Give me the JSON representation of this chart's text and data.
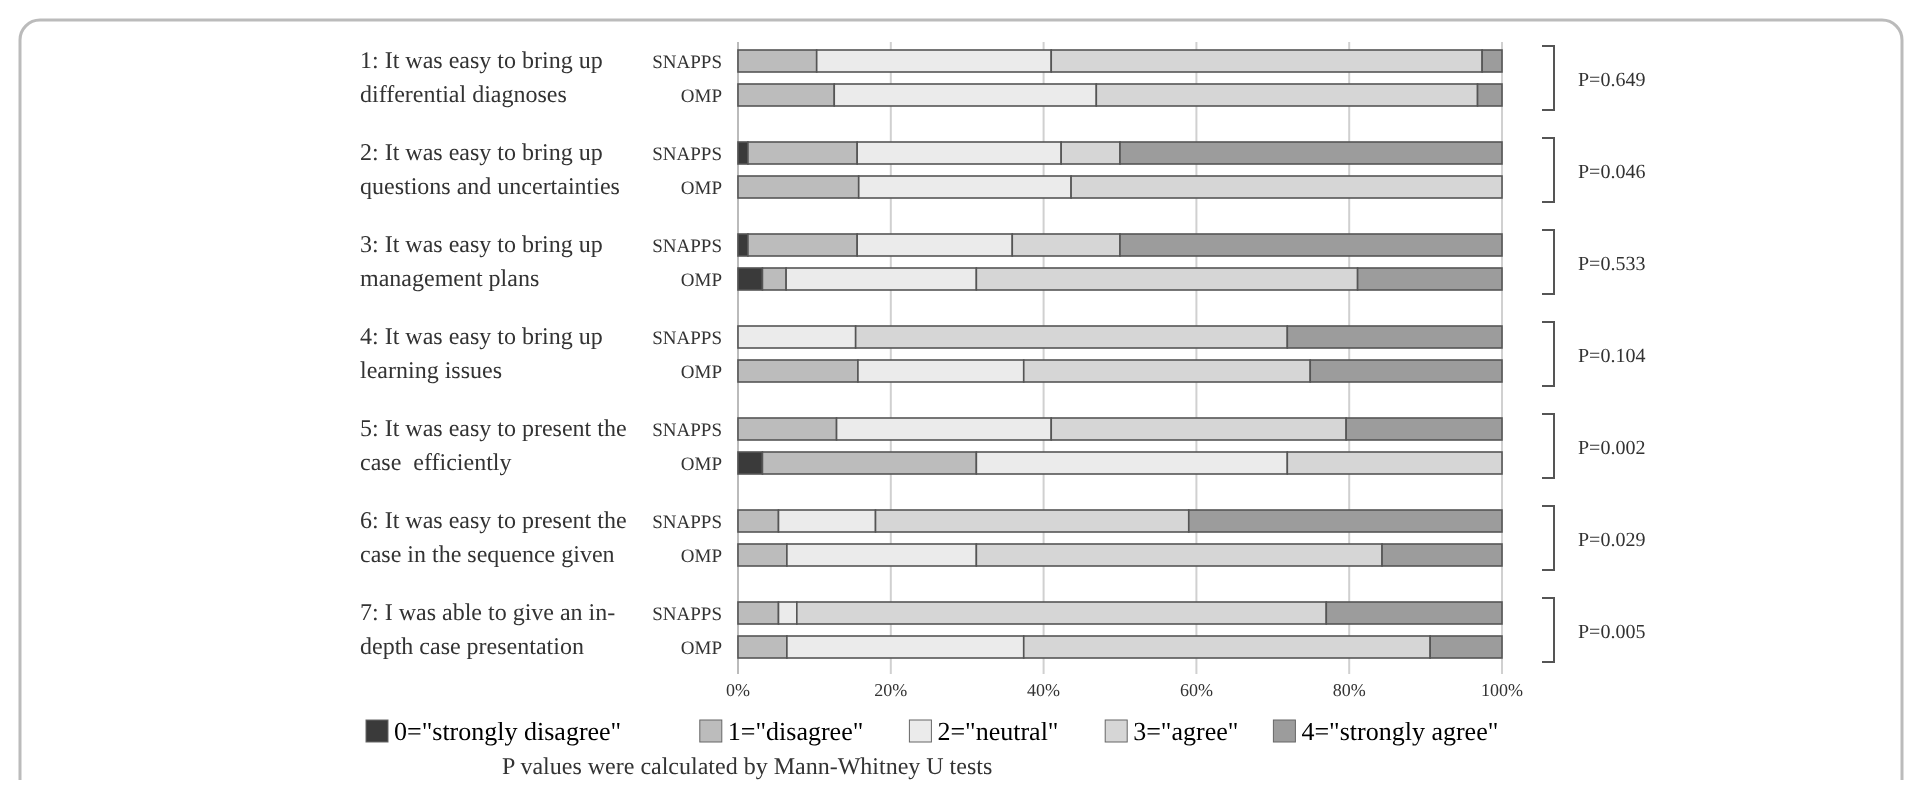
{
  "chart_data": {
    "type": "bar",
    "orientation": "horizontal",
    "stacked": true,
    "categories": [
      "SNAPPS",
      "OMP",
      "SNAPPS",
      "OMP",
      "SNAPPS",
      "OMP",
      "SNAPPS",
      "OMP",
      "SNAPPS",
      "OMP",
      "SNAPPS",
      "OMP",
      "SNAPPS",
      "OMP"
    ],
    "series": [
      {
        "name": "0=\"strongly disagree\"",
        "color": "#3a3a3a",
        "values": [
          0,
          0,
          1.3,
          0,
          1.3,
          3.2,
          0,
          0,
          0,
          3.2,
          0,
          0,
          0,
          0
        ]
      },
      {
        "name": "1=\"disagree\"",
        "color": "#bcbcbc",
        "values": [
          10.3,
          12.6,
          14.3,
          15.8,
          14.3,
          3.1,
          0,
          15.7,
          12.9,
          28.0,
          5.3,
          6.4,
          5.3,
          6.4
        ]
      },
      {
        "name": "2=\"neutral\"",
        "color": "#ebebeb",
        "values": [
          30.7,
          34.3,
          26.7,
          27.8,
          20.3,
          24.9,
          15.4,
          21.7,
          28.1,
          40.7,
          12.7,
          24.8,
          2.4,
          31.0
        ]
      },
      {
        "name": "3=\"agree\"",
        "color": "#d6d6d6",
        "values": [
          56.4,
          49.9,
          7.7,
          56.4,
          14.1,
          49.9,
          56.5,
          37.5,
          38.6,
          28.1,
          41.0,
          53.1,
          69.3,
          53.2
        ]
      },
      {
        "name": "4=\"strongly agree\"",
        "color": "#9c9c9c",
        "values": [
          2.6,
          3.2,
          50.0,
          0,
          50.0,
          18.9,
          28.1,
          25.1,
          20.4,
          0,
          41.0,
          15.7,
          23.0,
          9.4
        ]
      }
    ],
    "xlim": [
      0,
      100
    ],
    "xticks": [
      {
        "value": 0,
        "label": "0%"
      },
      {
        "value": 20,
        "label": "20%"
      },
      {
        "value": 40,
        "label": "40%"
      },
      {
        "value": 60,
        "label": "60%"
      },
      {
        "value": 80,
        "label": "80%"
      },
      {
        "value": 100,
        "label": "100%"
      }
    ],
    "grid": "x",
    "legend": "bottom",
    "annotations": [
      "1: It was easy to bring up\ndifferential diagnoses",
      "2: It was easy to bring up\nquestions and uncertainties",
      "3: It was easy to bring up\nmanagement plans",
      "4: It was easy to bring up\nlearning issues",
      "5: It was easy to present the\ncase  efficiently",
      "6: It was easy to present the\ncase in the sequence given",
      "7: I was able to give an in-\ndepth case presentation",
      "P=0.649",
      "P=0.046",
      "P=0.533",
      "P=0.104",
      "P=0.002",
      "P=0.029",
      "P=0.005",
      "P values were calculated by Mann-Whitney U tests"
    ]
  }
}
